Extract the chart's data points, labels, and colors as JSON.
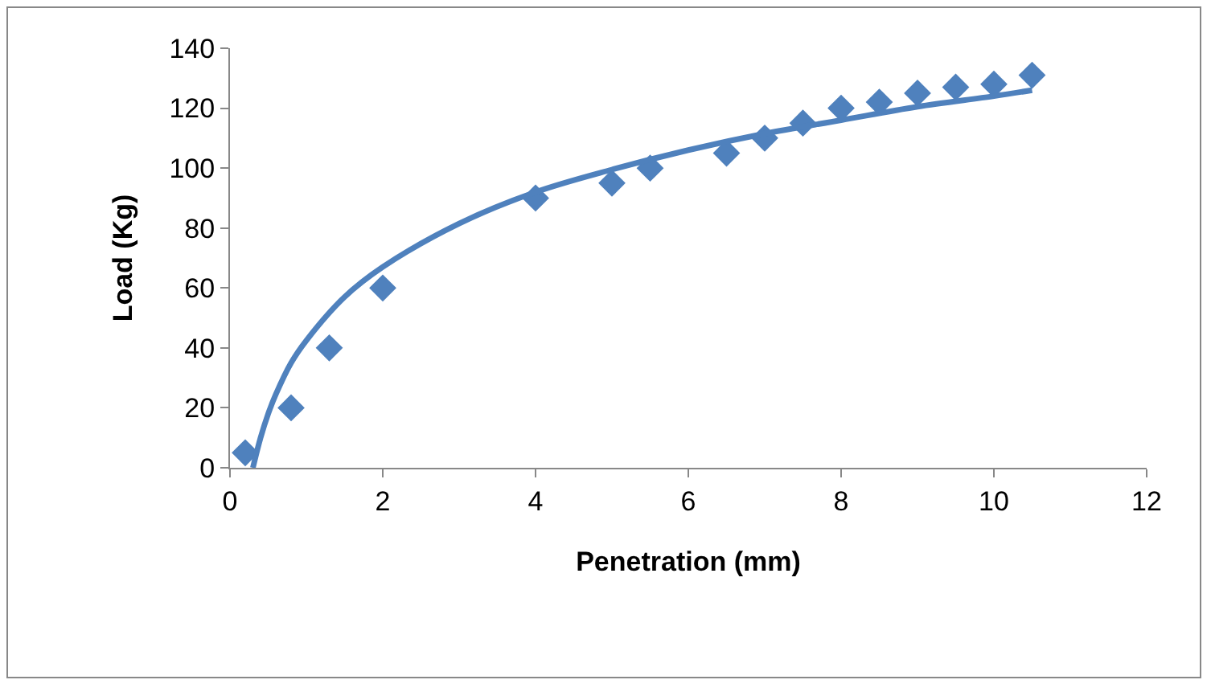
{
  "chart_data": {
    "type": "scatter",
    "xlabel": "Penetration (mm)",
    "ylabel": "Load (Kg)",
    "xlim": [
      0,
      12
    ],
    "xticks": [
      0,
      2,
      4,
      6,
      8,
      10,
      12
    ],
    "ylim": [
      0,
      140
    ],
    "yticks": [
      0,
      20,
      40,
      60,
      80,
      100,
      120,
      140
    ],
    "grid": false,
    "series": [
      {
        "color": "#4f81bd",
        "marker": "diamond",
        "x": [
          0.2,
          0.8,
          1.3,
          2,
          4,
          5,
          5.5,
          6.5,
          7,
          7.5,
          8,
          8.5,
          9,
          9.5,
          10,
          10.5
        ],
        "values": [
          5,
          20,
          40,
          60,
          90,
          95,
          100,
          105,
          110,
          115,
          120,
          122,
          125,
          127,
          128,
          131
        ]
      },
      {
        "type": "line",
        "color": "#4f81bd",
        "marker": "none",
        "line_style": "solid",
        "x": [
          0.3,
          0.4,
          0.5,
          0.6,
          0.8,
          1,
          1.5,
          2,
          3,
          4,
          5,
          6,
          7,
          8,
          9,
          10,
          10.5
        ],
        "values": [
          0,
          10,
          18,
          24.5,
          35,
          42.5,
          57,
          67,
          81.5,
          92,
          99.5,
          106,
          111.5,
          116,
          120.5,
          124,
          126
        ]
      }
    ]
  }
}
